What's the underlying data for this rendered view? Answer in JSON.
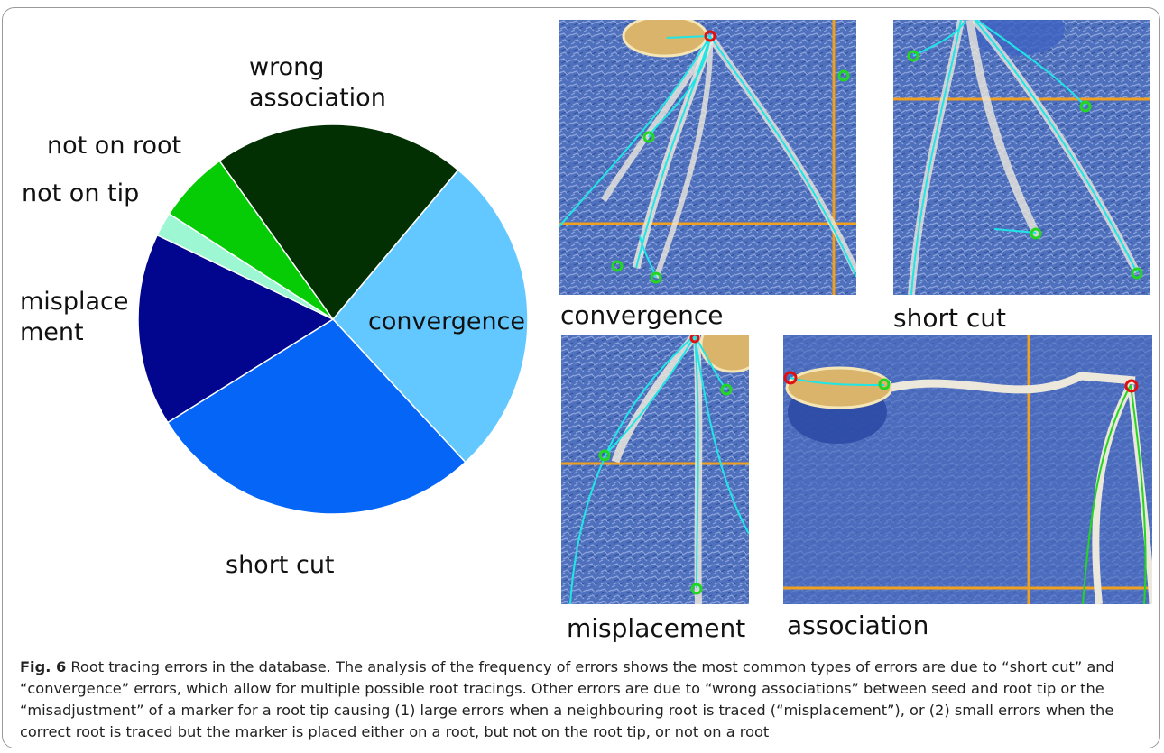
{
  "chart_data": {
    "type": "pie",
    "title": "",
    "slices": [
      {
        "label": "convergence",
        "value": 27,
        "color": "#63c8ff"
      },
      {
        "label": "short cut",
        "value": 28,
        "color": "#0465f6"
      },
      {
        "label": "misplace ment",
        "value": 16,
        "color": "#02058e"
      },
      {
        "label": "not on tip",
        "value": 2,
        "color": "#9cf7d2"
      },
      {
        "label": "not on root",
        "value": 6,
        "color": "#06cc06"
      },
      {
        "label": "wrong association",
        "value": 21,
        "color": "#023002"
      }
    ],
    "start_angle_deg_clockwise_from_top": 40,
    "direction": "clockwise"
  },
  "pie_labels": {
    "wrong_line1": "wrong",
    "wrong_line2": "association",
    "not_on_root": "not on root",
    "not_on_tip": "not on tip",
    "misplace_line1": "misplace",
    "misplace_line2": "ment",
    "convergence": "convergence",
    "short_cut": "short cut"
  },
  "photos": {
    "convergence": "convergence",
    "short_cut": "short cut",
    "misplacement": "misplacement",
    "association": "association"
  },
  "caption": {
    "fig_label": "Fig. 6",
    "text": "Root tracing errors in the database. The analysis of the frequency of errors shows the most common types of errors are due to “short cut” and “convergence” errors, which allow for multiple possible root tracings. Other errors are due to “wrong associations” between seed and root tip or the “misadjustment” of a marker for a root tip causing (1) large errors when a neighbouring root is traced (“misplacement”), or (2) small errors when the correct root is traced but the marker is placed either on a root, but not on the root tip, or not on a root"
  },
  "colors": {
    "background": "#4869b7",
    "trace": "#1fe6e6",
    "grid": "#f0a020",
    "marker_green": "#22d622",
    "marker_red": "#e01010",
    "root": "#ece8dc",
    "seed": "#d9b46a"
  }
}
